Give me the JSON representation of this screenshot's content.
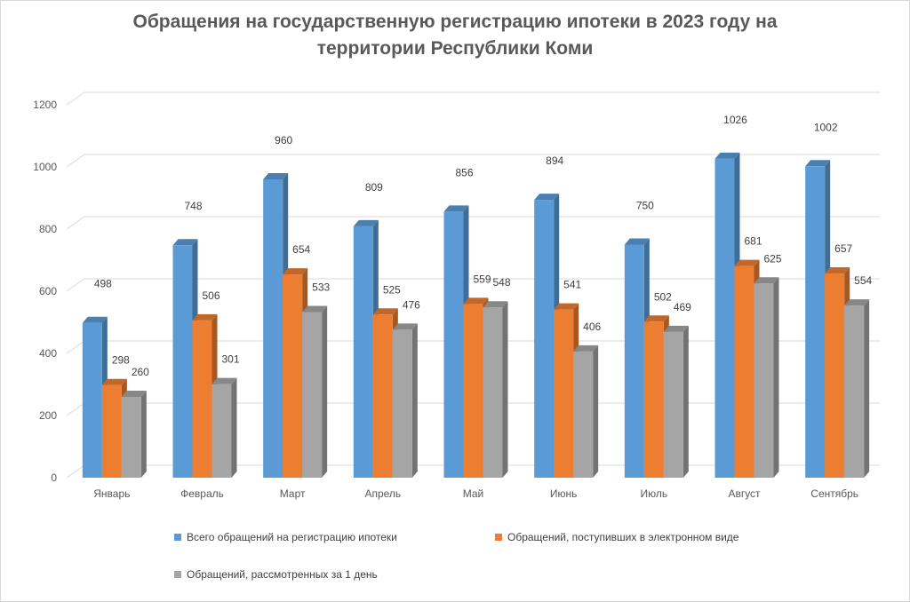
{
  "chart_data": {
    "type": "bar",
    "title_lines": [
      "Обращения на государственную регистрацию ипотеки в 2023 году на",
      "территории Республики Коми"
    ],
    "categories": [
      "Январь",
      "Февраль",
      "Март",
      "Апрель",
      "Май",
      "Июнь",
      "Июль",
      "Август",
      "Сентябрь"
    ],
    "series": [
      {
        "name": "Всего обращений на регистрацию ипотеки",
        "color": "#5b9bd5",
        "values": [
          498,
          748,
          960,
          809,
          856,
          894,
          750,
          1026,
          1002
        ]
      },
      {
        "name": "Обращений, поступивших в электронном виде",
        "color": "#ed7d31",
        "values": [
          298,
          506,
          654,
          525,
          559,
          541,
          502,
          681,
          657
        ]
      },
      {
        "name": "Обращений, рассмотренных за 1 день",
        "color": "#a5a5a5",
        "values": [
          260,
          301,
          533,
          476,
          548,
          406,
          469,
          625,
          554
        ]
      }
    ],
    "yticks": [
      0,
      200,
      400,
      600,
      800,
      1000,
      1200
    ],
    "ylim": [
      0,
      1200
    ],
    "grid": true,
    "legend_position": "bottom",
    "style": "3d-clustered-column"
  }
}
